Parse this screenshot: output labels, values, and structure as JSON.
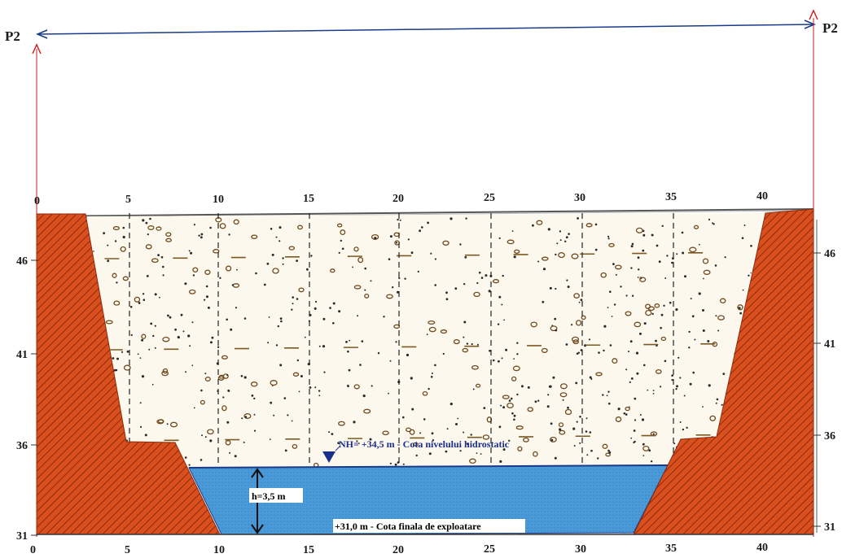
{
  "section_label": "P2",
  "x_ticks": [
    "0",
    "5",
    "10",
    "15",
    "20",
    "25",
    "30",
    "35",
    "40"
  ],
  "elevation_ticks": [
    "46",
    "41",
    "36",
    "31"
  ],
  "annotations": {
    "groundwater": "NH= +34,5 m - Cota nivelului hidrostatic",
    "depth": "h=3,5 m",
    "final_level": "+31,0 m - Cota finala de exploatare"
  },
  "colors": {
    "bank": "#d9501e",
    "bank_hatch": "#8c2a0c",
    "water": "#4a9ad8",
    "water_label": "#1a2f8a",
    "gravel_bg": "#fdf8ee",
    "gravel_dot": "#6e4a1c",
    "section_line": "#1a3a8a",
    "border": "#c82020"
  },
  "icons": {
    "water_marker": "inverted-triangle-icon",
    "depth_arrow": "double-arrow-icon"
  }
}
